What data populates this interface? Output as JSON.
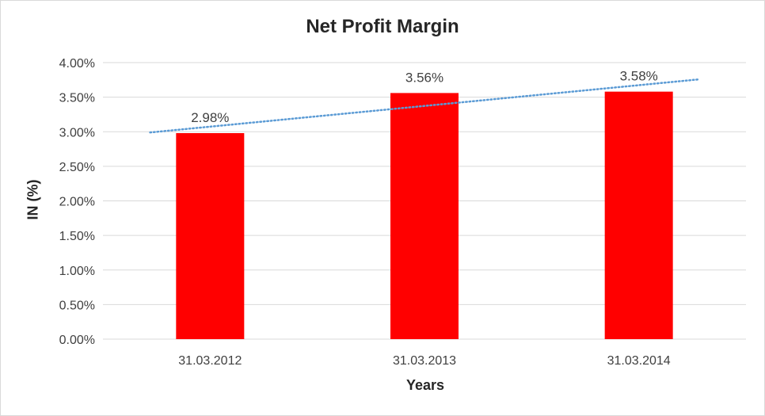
{
  "chart_data": {
    "type": "bar",
    "title": "Net Profit Margin",
    "xlabel": "Years",
    "ylabel": "IN (%)",
    "categories": [
      "31.03.2012",
      "31.03.2013",
      "31.03.2014"
    ],
    "values": [
      2.98,
      3.56,
      3.58
    ],
    "data_labels": [
      "2.98%",
      "3.56%",
      "3.58%"
    ],
    "ylim": [
      0,
      4
    ],
    "yticks": [
      0,
      0.5,
      1,
      1.5,
      2,
      2.5,
      3,
      3.5,
      4
    ],
    "ytick_labels": [
      "0.00%",
      "0.50%",
      "1.00%",
      "1.50%",
      "2.00%",
      "2.50%",
      "3.00%",
      "3.50%",
      "4.00%"
    ],
    "bar_color": "#ff0000",
    "trendline": {
      "type": "linear",
      "style": "dotted",
      "color": "#5b9bd5"
    },
    "grid": true,
    "legend": "none"
  }
}
